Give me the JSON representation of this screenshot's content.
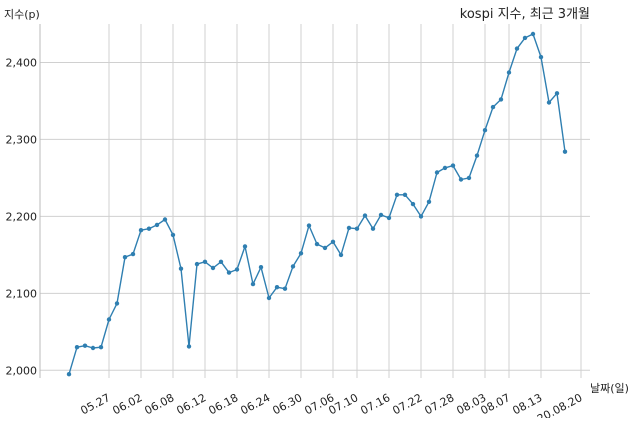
{
  "chart_data": {
    "type": "line",
    "title": "kospi 지수, 최근 3개월",
    "xlabel": "날짜(일)",
    "ylabel": "지수(p)",
    "ylim": [
      1990,
      2450
    ],
    "yticks": [
      "2,000",
      "2,100",
      "2,200",
      "2,300",
      "2,400"
    ],
    "ytick_values": [
      2000,
      2100,
      2200,
      2300,
      2400
    ],
    "xticks": [
      "05.27",
      "06.02",
      "06.08",
      "06.12",
      "06.18",
      "06.24",
      "06.30",
      "07.06",
      "07.10",
      "07.16",
      "07.22",
      "07.28",
      "08.03",
      "08.07",
      "08.13",
      "20.08.20"
    ],
    "xtick_index": [
      5,
      9,
      13,
      17,
      21,
      25,
      29,
      33,
      36,
      40,
      44,
      48,
      52,
      55,
      59,
      64
    ],
    "grid": true,
    "series": [
      {
        "color": "#2f7fb1",
        "values": [
          1995,
          2030,
          2032,
          2029,
          2030,
          2066,
          2087,
          2147,
          2151,
          2182,
          2184,
          2189,
          2196,
          2176,
          2132,
          2031,
          2138,
          2141,
          2133,
          2141,
          2127,
          2131,
          2161,
          2112,
          2134,
          2094,
          2108,
          2106,
          2135,
          2152,
          2188,
          2164,
          2159,
          2167,
          2150,
          2185,
          2184,
          2201,
          2184,
          2202,
          2198,
          2228,
          2228,
          2216,
          2200,
          2219,
          2257,
          2263,
          2266,
          2248,
          2250,
          2279,
          2312,
          2342,
          2352,
          2387,
          2418,
          2432,
          2437,
          2407,
          2348,
          2360,
          2284
        ]
      }
    ]
  }
}
